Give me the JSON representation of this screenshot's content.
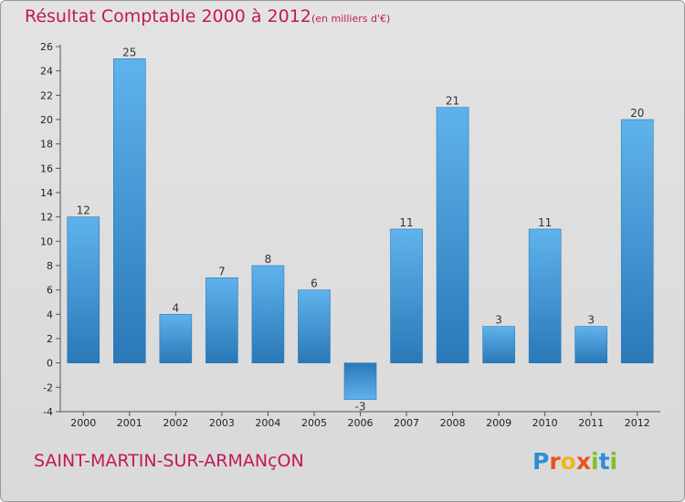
{
  "header": {
    "title": "Résultat Comptable 2000 à 2012",
    "subtitle": "(en milliers d'€)"
  },
  "footer": {
    "commune": "SAINT-MARTIN-SUR-ARMANçON",
    "logo_letters": [
      "P",
      "r",
      "o",
      "x",
      "i",
      "t",
      "i"
    ],
    "logo_colors": [
      "#2a8fd8",
      "#e8541e",
      "#f1b51c",
      "#e8541e",
      "#7fbf2a",
      "#2a8fd8",
      "#7fbf2a"
    ]
  },
  "colors": {
    "bar_light": "#5fb3ec",
    "bar_dark": "#2a78b8",
    "title": "#c2185b"
  },
  "chart_data": {
    "type": "bar",
    "title": "Résultat Comptable 2000 à 2012",
    "ylabel": "en milliers d'€",
    "xlabel": "",
    "categories": [
      "2000",
      "2001",
      "2002",
      "2003",
      "2004",
      "2005",
      "2006",
      "2007",
      "2008",
      "2009",
      "2010",
      "2011",
      "2012"
    ],
    "values": [
      12,
      25,
      4,
      7,
      8,
      6,
      -3,
      11,
      21,
      3,
      11,
      3,
      20
    ],
    "ylim": [
      -4,
      26
    ],
    "yticks": [
      -4,
      -2,
      0,
      2,
      4,
      6,
      8,
      10,
      12,
      14,
      16,
      18,
      20,
      22,
      24,
      26
    ],
    "grid": false
  }
}
